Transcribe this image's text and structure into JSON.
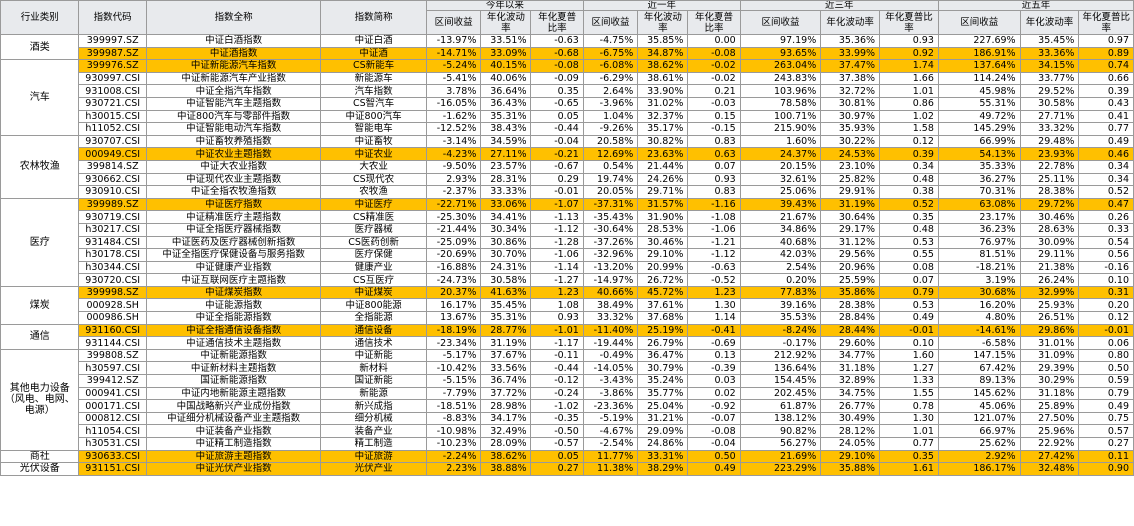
{
  "headers": {
    "category": "行业类别",
    "code": "指数代码",
    "fullname": "指数全称",
    "shortname": "指数简称",
    "periods": [
      "今年以来",
      "近一年",
      "近三年",
      "近五年"
    ],
    "metrics": [
      "区间收益",
      "年化波动率",
      "年化夏普比率"
    ]
  },
  "colors": {
    "highlight": "#ffc000",
    "header_bg": "#e8eaed",
    "border": "#9a9a9a"
  },
  "groups": [
    {
      "name": "酒类",
      "rows": [
        {
          "code": "399997.SZ",
          "full": "中证白酒指数",
          "short": "中证白酒",
          "v": [
            "-13.97%",
            "33.51%",
            "-0.63",
            "-4.75%",
            "35.85%",
            "0.00",
            "97.19%",
            "35.36%",
            "0.93",
            "227.69%",
            "35.45%",
            "0.97"
          ],
          "hl": false
        },
        {
          "code": "399987.SZ",
          "full": "中证酒指数",
          "short": "中证酒",
          "v": [
            "-14.71%",
            "33.09%",
            "-0.68",
            "-6.75%",
            "34.87%",
            "-0.08",
            "93.65%",
            "33.99%",
            "0.92",
            "186.91%",
            "33.36%",
            "0.89"
          ],
          "hl": true
        }
      ]
    },
    {
      "name": "汽车",
      "rows": [
        {
          "code": "399976.SZ",
          "full": "中证新能源汽车指数",
          "short": "CS新能车",
          "v": [
            "-5.24%",
            "40.15%",
            "-0.08",
            "-6.08%",
            "38.62%",
            "-0.02",
            "263.04%",
            "37.47%",
            "1.74",
            "137.64%",
            "34.15%",
            "0.74"
          ],
          "hl": true
        },
        {
          "code": "930997.CSI",
          "full": "中证新能源汽车产业指数",
          "short": "新能源车",
          "v": [
            "-5.41%",
            "40.06%",
            "-0.09",
            "-6.29%",
            "38.61%",
            "-0.02",
            "243.83%",
            "37.38%",
            "1.66",
            "114.24%",
            "33.77%",
            "0.66"
          ],
          "hl": false
        },
        {
          "code": "931008.CSI",
          "full": "中证全指汽车指数",
          "short": "汽车指数",
          "v": [
            "3.78%",
            "36.64%",
            "0.35",
            "2.64%",
            "33.90%",
            "0.21",
            "103.96%",
            "32.72%",
            "1.01",
            "45.98%",
            "29.52%",
            "0.39"
          ],
          "hl": false
        },
        {
          "code": "930721.CSI",
          "full": "中证智能汽车主题指数",
          "short": "CS智汽车",
          "v": [
            "-16.05%",
            "36.43%",
            "-0.65",
            "-3.96%",
            "31.02%",
            "-0.03",
            "78.58%",
            "30.81%",
            "0.86",
            "55.31%",
            "30.58%",
            "0.43"
          ],
          "hl": false
        },
        {
          "code": "h30015.CSI",
          "full": "中证800汽车与零部件指数",
          "short": "中证800汽车",
          "v": [
            "-1.62%",
            "35.31%",
            "0.05",
            "1.04%",
            "32.37%",
            "0.15",
            "100.71%",
            "30.97%",
            "1.02",
            "49.72%",
            "27.71%",
            "0.41"
          ],
          "hl": false
        },
        {
          "code": "h11052.CSI",
          "full": "中证智能电动汽车指数",
          "short": "智能电车",
          "v": [
            "-12.52%",
            "38.43%",
            "-0.44",
            "-9.26%",
            "35.17%",
            "-0.15",
            "215.90%",
            "35.93%",
            "1.58",
            "145.29%",
            "33.32%",
            "0.77"
          ],
          "hl": false
        }
      ]
    },
    {
      "name": "农林牧渔",
      "rows": [
        {
          "code": "930707.CSI",
          "full": "中证畜牧养殖指数",
          "short": "中证畜牧",
          "v": [
            "-3.14%",
            "34.59%",
            "-0.04",
            "20.58%",
            "30.82%",
            "0.83",
            "1.60%",
            "30.22%",
            "0.12",
            "66.99%",
            "29.48%",
            "0.49"
          ],
          "hl": false
        },
        {
          "code": "000949.CSI",
          "full": "中证农业主题指数",
          "short": "中证农业",
          "v": [
            "-4.23%",
            "27.11%",
            "-0.21",
            "12.69%",
            "23.63%",
            "0.63",
            "24.37%",
            "24.53%",
            "0.39",
            "54.13%",
            "23.93%",
            "0.46"
          ],
          "hl": true
        },
        {
          "code": "399814.SZ",
          "full": "中证大农业指数",
          "short": "大农业",
          "v": [
            "-9.50%",
            "23.57%",
            "-0.67",
            "0.54%",
            "21.44%",
            "0.07",
            "20.15%",
            "23.10%",
            "0.34",
            "35.33%",
            "22.78%",
            "0.34"
          ],
          "hl": false
        },
        {
          "code": "930662.CSI",
          "full": "中证现代农业主题指数",
          "short": "CS现代农",
          "v": [
            "2.93%",
            "28.31%",
            "0.29",
            "19.74%",
            "24.26%",
            "0.93",
            "32.61%",
            "25.82%",
            "0.48",
            "36.27%",
            "25.11%",
            "0.34"
          ],
          "hl": false
        },
        {
          "code": "930910.CSI",
          "full": "中证全指农牧渔指数",
          "short": "农牧渔",
          "v": [
            "-2.37%",
            "33.33%",
            "-0.01",
            "20.05%",
            "29.71%",
            "0.83",
            "25.06%",
            "29.91%",
            "0.38",
            "70.31%",
            "28.38%",
            "0.52"
          ],
          "hl": false
        }
      ]
    },
    {
      "name": "医疗",
      "rows": [
        {
          "code": "399989.SZ",
          "full": "中证医疗指数",
          "short": "中证医疗",
          "v": [
            "-22.71%",
            "33.06%",
            "-1.07",
            "-37.31%",
            "31.57%",
            "-1.16",
            "39.43%",
            "31.19%",
            "0.52",
            "63.08%",
            "29.72%",
            "0.47"
          ],
          "hl": true
        },
        {
          "code": "930719.CSI",
          "full": "中证精准医疗主题指数",
          "short": "CS精准医",
          "v": [
            "-25.30%",
            "34.41%",
            "-1.13",
            "-35.43%",
            "31.90%",
            "-1.08",
            "21.67%",
            "30.64%",
            "0.35",
            "23.17%",
            "30.46%",
            "0.26"
          ],
          "hl": false
        },
        {
          "code": "h30217.CSI",
          "full": "中证全指医疗器械指数",
          "short": "医疗器械",
          "v": [
            "-21.44%",
            "30.34%",
            "-1.12",
            "-30.64%",
            "28.53%",
            "-1.06",
            "34.86%",
            "29.17%",
            "0.48",
            "36.23%",
            "28.63%",
            "0.33"
          ],
          "hl": false
        },
        {
          "code": "931484.CSI",
          "full": "中证医药及医疗器械创新指数",
          "short": "CS医药创新",
          "v": [
            "-25.09%",
            "30.86%",
            "-1.28",
            "-37.26%",
            "30.46%",
            "-1.21",
            "40.68%",
            "31.12%",
            "0.53",
            "76.97%",
            "30.09%",
            "0.54"
          ],
          "hl": false
        },
        {
          "code": "h30178.CSI",
          "full": "中证全指医疗保健设备与服务指数",
          "short": "医疗保健",
          "v": [
            "-20.69%",
            "30.70%",
            "-1.06",
            "-32.96%",
            "29.10%",
            "-1.12",
            "42.03%",
            "29.56%",
            "0.55",
            "81.51%",
            "29.11%",
            "0.56"
          ],
          "hl": false
        },
        {
          "code": "h30344.CSI",
          "full": "中证健康产业指数",
          "short": "健康产业",
          "v": [
            "-16.88%",
            "24.31%",
            "-1.14",
            "-13.20%",
            "20.99%",
            "-0.63",
            "2.54%",
            "20.96%",
            "0.08",
            "-18.21%",
            "21.38%",
            "-0.16"
          ],
          "hl": false
        },
        {
          "code": "930720.CSI",
          "full": "中证互联网医疗主题指数",
          "short": "CS互医疗",
          "v": [
            "-24.73%",
            "30.58%",
            "-1.27",
            "-14.97%",
            "26.72%",
            "-0.52",
            "0.20%",
            "25.59%",
            "0.07",
            "3.19%",
            "26.24%",
            "0.10"
          ],
          "hl": false
        }
      ]
    },
    {
      "name": "煤炭",
      "rows": [
        {
          "code": "399998.SZ",
          "full": "中证煤炭指数",
          "short": "中证煤炭",
          "v": [
            "20.37%",
            "41.63%",
            "1.23",
            "40.66%",
            "45.72%",
            "1.23",
            "77.83%",
            "35.86%",
            "0.79",
            "30.68%",
            "32.99%",
            "0.31"
          ],
          "hl": true
        },
        {
          "code": "000928.SH",
          "full": "中证能源指数",
          "short": "中证800能源",
          "v": [
            "16.17%",
            "35.45%",
            "1.08",
            "38.49%",
            "37.61%",
            "1.30",
            "39.16%",
            "28.38%",
            "0.53",
            "16.20%",
            "25.93%",
            "0.20"
          ],
          "hl": false
        },
        {
          "code": "000986.SH",
          "full": "中证全指能源指数",
          "short": "全指能源",
          "v": [
            "13.67%",
            "35.31%",
            "0.93",
            "33.32%",
            "37.68%",
            "1.14",
            "35.53%",
            "28.84%",
            "0.49",
            "4.80%",
            "26.51%",
            "0.12"
          ],
          "hl": false
        }
      ]
    },
    {
      "name": "通信",
      "rows": [
        {
          "code": "931160.CSI",
          "full": "中证全指通信设备指数",
          "short": "通信设备",
          "v": [
            "-18.19%",
            "28.77%",
            "-1.01",
            "-11.40%",
            "25.19%",
            "-0.41",
            "-8.24%",
            "28.44%",
            "-0.01",
            "-14.61%",
            "29.86%",
            "-0.01"
          ],
          "hl": true
        },
        {
          "code": "931144.CSI",
          "full": "中证通信技术主题指数",
          "short": "通信技术",
          "v": [
            "-23.34%",
            "31.19%",
            "-1.17",
            "-19.44%",
            "26.79%",
            "-0.69",
            "-0.17%",
            "29.60%",
            "0.10",
            "-6.58%",
            "31.01%",
            "0.06"
          ],
          "hl": false
        }
      ]
    },
    {
      "name": "其他电力设备（风电、电网、电源）",
      "rows": [
        {
          "code": "399808.SZ",
          "full": "中证新能源指数",
          "short": "中证新能",
          "v": [
            "-5.17%",
            "37.67%",
            "-0.11",
            "-0.49%",
            "36.47%",
            "0.13",
            "212.92%",
            "34.77%",
            "1.60",
            "147.15%",
            "31.09%",
            "0.80"
          ],
          "hl": false
        },
        {
          "code": "h30597.CSI",
          "full": "中证新材料主题指数",
          "short": "新材料",
          "v": [
            "-10.42%",
            "33.56%",
            "-0.44",
            "-14.05%",
            "30.79%",
            "-0.39",
            "136.64%",
            "31.18%",
            "1.27",
            "67.42%",
            "29.39%",
            "0.50"
          ],
          "hl": false
        },
        {
          "code": "399412.SZ",
          "full": "国证新能源指数",
          "short": "国证新能",
          "v": [
            "-5.15%",
            "36.74%",
            "-0.12",
            "-3.43%",
            "35.24%",
            "0.03",
            "154.45%",
            "32.89%",
            "1.33",
            "89.13%",
            "30.29%",
            "0.59"
          ],
          "hl": false
        },
        {
          "code": "000941.CSI",
          "full": "中证内地新能源主题指数",
          "short": "新能源",
          "v": [
            "-7.79%",
            "37.72%",
            "-0.24",
            "-3.86%",
            "35.77%",
            "0.02",
            "202.45%",
            "34.75%",
            "1.55",
            "145.62%",
            "31.18%",
            "0.79"
          ],
          "hl": false
        },
        {
          "code": "000171.CSI",
          "full": "中国战略新兴产业成份指数",
          "short": "新兴成指",
          "v": [
            "-18.51%",
            "28.98%",
            "-1.02",
            "-23.36%",
            "25.04%",
            "-0.92",
            "61.87%",
            "26.77%",
            "0.78",
            "45.06%",
            "25.89%",
            "0.49"
          ],
          "hl": false
        },
        {
          "code": "000812.CSI",
          "full": "中证细分机械设备产业主题指数",
          "short": "细分机械",
          "v": [
            "-8.83%",
            "34.17%",
            "-0.35",
            "-5.19%",
            "31.21%",
            "-0.07",
            "138.12%",
            "30.49%",
            "1.30",
            "121.07%",
            "27.50%",
            "0.75"
          ],
          "hl": false
        },
        {
          "code": "h11054.CSI",
          "full": "中证装备产业指数",
          "short": "装备产业",
          "v": [
            "-10.98%",
            "32.49%",
            "-0.50",
            "-4.67%",
            "29.09%",
            "-0.08",
            "90.82%",
            "28.12%",
            "1.01",
            "66.97%",
            "25.96%",
            "0.57"
          ],
          "hl": false
        },
        {
          "code": "h30531.CSI",
          "full": "中证精工制造指数",
          "short": "精工制造",
          "v": [
            "-10.23%",
            "28.09%",
            "-0.57",
            "-2.54%",
            "24.86%",
            "-0.04",
            "56.27%",
            "24.05%",
            "0.77",
            "25.62%",
            "22.92%",
            "0.27"
          ],
          "hl": false
        }
      ]
    },
    {
      "name": "商社",
      "rows": [
        {
          "code": "930633.CSI",
          "full": "中证旅游主题指数",
          "short": "中证旅游",
          "v": [
            "-2.24%",
            "38.62%",
            "0.05",
            "11.77%",
            "33.31%",
            "0.50",
            "21.69%",
            "29.10%",
            "0.35",
            "2.92%",
            "27.42%",
            "0.11"
          ],
          "hl": true
        }
      ]
    },
    {
      "name": "光伏设备",
      "rows": [
        {
          "code": "931151.CSI",
          "full": "中证光伏产业指数",
          "short": "光伏产业",
          "v": [
            "2.23%",
            "38.88%",
            "0.27",
            "11.38%",
            "38.29%",
            "0.49",
            "223.29%",
            "35.88%",
            "1.61",
            "186.17%",
            "32.48%",
            "0.90"
          ],
          "hl": true
        }
      ]
    }
  ]
}
